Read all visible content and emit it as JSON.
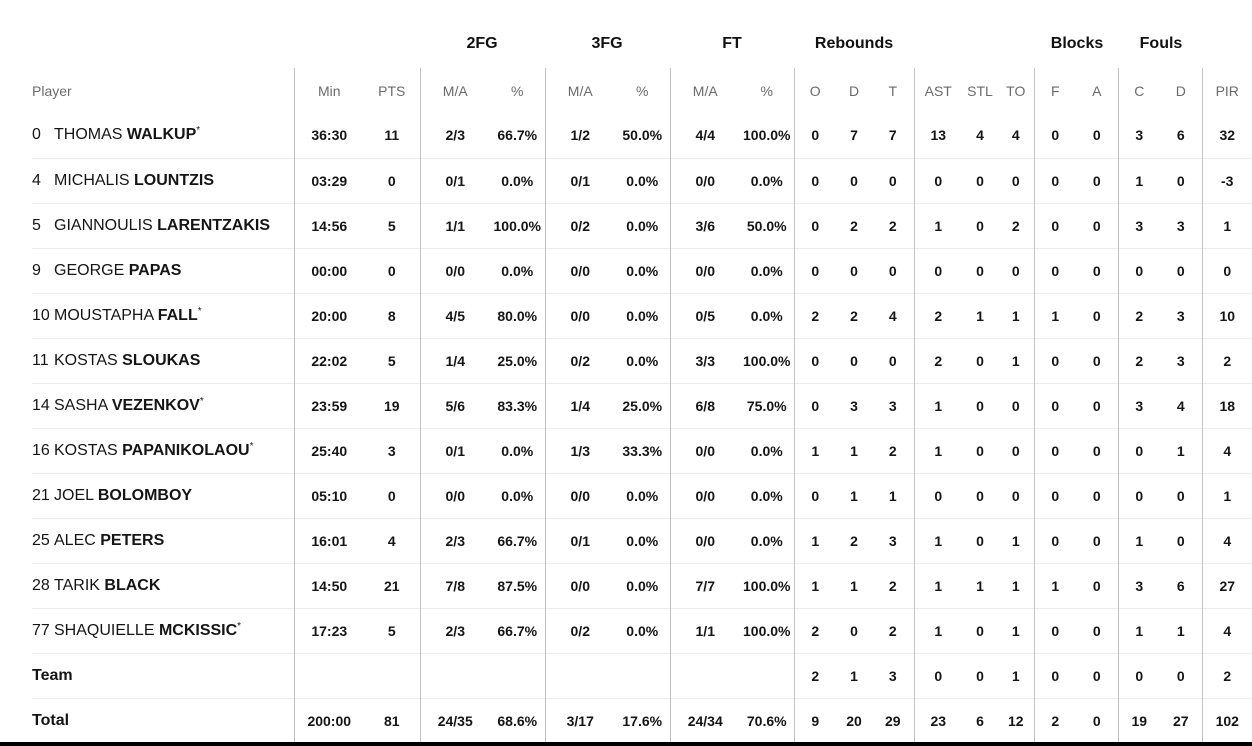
{
  "group_headers": {
    "fg2": "2FG",
    "fg3": "3FG",
    "ft": "FT",
    "rebounds": "Rebounds",
    "blocks": "Blocks",
    "fouls": "Fouls"
  },
  "columns": {
    "player": "Player",
    "min": "Min",
    "pts": "PTS",
    "fg2_ma": "M/A",
    "fg2_pct": "%",
    "fg3_ma": "M/A",
    "fg3_pct": "%",
    "ft_ma": "M/A",
    "ft_pct": "%",
    "reb_o": "O",
    "reb_d": "D",
    "reb_t": "T",
    "ast": "AST",
    "stl": "STL",
    "to": "TO",
    "blk_f": "F",
    "blk_a": "A",
    "foul_c": "C",
    "foul_d": "D",
    "pir": "PIR"
  },
  "players": [
    {
      "num": "0",
      "first": "THOMAS",
      "last": "WALKUP",
      "starter": "*",
      "min": "36:30",
      "pts": "11",
      "fg2_ma": "2/3",
      "fg2_pct": "66.7%",
      "fg3_ma": "1/2",
      "fg3_pct": "50.0%",
      "ft_ma": "4/4",
      "ft_pct": "100.0%",
      "reb_o": "0",
      "reb_d": "7",
      "reb_t": "7",
      "ast": "13",
      "stl": "4",
      "to": "4",
      "blk_f": "0",
      "blk_a": "0",
      "foul_c": "3",
      "foul_d": "6",
      "pir": "32"
    },
    {
      "num": "4",
      "first": "MICHALIS",
      "last": "LOUNTZIS",
      "starter": "",
      "min": "03:29",
      "pts": "0",
      "fg2_ma": "0/1",
      "fg2_pct": "0.0%",
      "fg3_ma": "0/1",
      "fg3_pct": "0.0%",
      "ft_ma": "0/0",
      "ft_pct": "0.0%",
      "reb_o": "0",
      "reb_d": "0",
      "reb_t": "0",
      "ast": "0",
      "stl": "0",
      "to": "0",
      "blk_f": "0",
      "blk_a": "0",
      "foul_c": "1",
      "foul_d": "0",
      "pir": "-3"
    },
    {
      "num": "5",
      "first": "GIANNOULIS",
      "last": "LARENTZAKIS",
      "starter": "",
      "min": "14:56",
      "pts": "5",
      "fg2_ma": "1/1",
      "fg2_pct": "100.0%",
      "fg3_ma": "0/2",
      "fg3_pct": "0.0%",
      "ft_ma": "3/6",
      "ft_pct": "50.0%",
      "reb_o": "0",
      "reb_d": "2",
      "reb_t": "2",
      "ast": "1",
      "stl": "0",
      "to": "2",
      "blk_f": "0",
      "blk_a": "0",
      "foul_c": "3",
      "foul_d": "3",
      "pir": "1"
    },
    {
      "num": "9",
      "first": "GEORGE",
      "last": "PAPAS",
      "starter": "",
      "min": "00:00",
      "pts": "0",
      "fg2_ma": "0/0",
      "fg2_pct": "0.0%",
      "fg3_ma": "0/0",
      "fg3_pct": "0.0%",
      "ft_ma": "0/0",
      "ft_pct": "0.0%",
      "reb_o": "0",
      "reb_d": "0",
      "reb_t": "0",
      "ast": "0",
      "stl": "0",
      "to": "0",
      "blk_f": "0",
      "blk_a": "0",
      "foul_c": "0",
      "foul_d": "0",
      "pir": "0"
    },
    {
      "num": "10",
      "first": "MOUSTAPHA",
      "last": "FALL",
      "starter": "*",
      "min": "20:00",
      "pts": "8",
      "fg2_ma": "4/5",
      "fg2_pct": "80.0%",
      "fg3_ma": "0/0",
      "fg3_pct": "0.0%",
      "ft_ma": "0/5",
      "ft_pct": "0.0%",
      "reb_o": "2",
      "reb_d": "2",
      "reb_t": "4",
      "ast": "2",
      "stl": "1",
      "to": "1",
      "blk_f": "1",
      "blk_a": "0",
      "foul_c": "2",
      "foul_d": "3",
      "pir": "10"
    },
    {
      "num": "11",
      "first": "KOSTAS",
      "last": "SLOUKAS",
      "starter": "",
      "min": "22:02",
      "pts": "5",
      "fg2_ma": "1/4",
      "fg2_pct": "25.0%",
      "fg3_ma": "0/2",
      "fg3_pct": "0.0%",
      "ft_ma": "3/3",
      "ft_pct": "100.0%",
      "reb_o": "0",
      "reb_d": "0",
      "reb_t": "0",
      "ast": "2",
      "stl": "0",
      "to": "1",
      "blk_f": "0",
      "blk_a": "0",
      "foul_c": "2",
      "foul_d": "3",
      "pir": "2"
    },
    {
      "num": "14",
      "first": "SASHA",
      "last": "VEZENKOV",
      "starter": "*",
      "min": "23:59",
      "pts": "19",
      "fg2_ma": "5/6",
      "fg2_pct": "83.3%",
      "fg3_ma": "1/4",
      "fg3_pct": "25.0%",
      "ft_ma": "6/8",
      "ft_pct": "75.0%",
      "reb_o": "0",
      "reb_d": "3",
      "reb_t": "3",
      "ast": "1",
      "stl": "0",
      "to": "0",
      "blk_f": "0",
      "blk_a": "0",
      "foul_c": "3",
      "foul_d": "4",
      "pir": "18"
    },
    {
      "num": "16",
      "first": "KOSTAS",
      "last": "PAPANIKOLAOU",
      "starter": "*",
      "min": "25:40",
      "pts": "3",
      "fg2_ma": "0/1",
      "fg2_pct": "0.0%",
      "fg3_ma": "1/3",
      "fg3_pct": "33.3%",
      "ft_ma": "0/0",
      "ft_pct": "0.0%",
      "reb_o": "1",
      "reb_d": "1",
      "reb_t": "2",
      "ast": "1",
      "stl": "0",
      "to": "0",
      "blk_f": "0",
      "blk_a": "0",
      "foul_c": "0",
      "foul_d": "1",
      "pir": "4"
    },
    {
      "num": "21",
      "first": "JOEL",
      "last": "BOLOMBOY",
      "starter": "",
      "min": "05:10",
      "pts": "0",
      "fg2_ma": "0/0",
      "fg2_pct": "0.0%",
      "fg3_ma": "0/0",
      "fg3_pct": "0.0%",
      "ft_ma": "0/0",
      "ft_pct": "0.0%",
      "reb_o": "0",
      "reb_d": "1",
      "reb_t": "1",
      "ast": "0",
      "stl": "0",
      "to": "0",
      "blk_f": "0",
      "blk_a": "0",
      "foul_c": "0",
      "foul_d": "0",
      "pir": "1"
    },
    {
      "num": "25",
      "first": "ALEC",
      "last": "PETERS",
      "starter": "",
      "min": "16:01",
      "pts": "4",
      "fg2_ma": "2/3",
      "fg2_pct": "66.7%",
      "fg3_ma": "0/1",
      "fg3_pct": "0.0%",
      "ft_ma": "0/0",
      "ft_pct": "0.0%",
      "reb_o": "1",
      "reb_d": "2",
      "reb_t": "3",
      "ast": "1",
      "stl": "0",
      "to": "1",
      "blk_f": "0",
      "blk_a": "0",
      "foul_c": "1",
      "foul_d": "0",
      "pir": "4"
    },
    {
      "num": "28",
      "first": "TARIK",
      "last": "BLACK",
      "starter": "",
      "min": "14:50",
      "pts": "21",
      "fg2_ma": "7/8",
      "fg2_pct": "87.5%",
      "fg3_ma": "0/0",
      "fg3_pct": "0.0%",
      "ft_ma": "7/7",
      "ft_pct": "100.0%",
      "reb_o": "1",
      "reb_d": "1",
      "reb_t": "2",
      "ast": "1",
      "stl": "1",
      "to": "1",
      "blk_f": "1",
      "blk_a": "0",
      "foul_c": "3",
      "foul_d": "6",
      "pir": "27"
    },
    {
      "num": "77",
      "first": "SHAQUIELLE",
      "last": "MCKISSIC",
      "starter": "*",
      "min": "17:23",
      "pts": "5",
      "fg2_ma": "2/3",
      "fg2_pct": "66.7%",
      "fg3_ma": "0/2",
      "fg3_pct": "0.0%",
      "ft_ma": "1/1",
      "ft_pct": "100.0%",
      "reb_o": "2",
      "reb_d": "0",
      "reb_t": "2",
      "ast": "1",
      "stl": "0",
      "to": "1",
      "blk_f": "0",
      "blk_a": "0",
      "foul_c": "1",
      "foul_d": "1",
      "pir": "4"
    }
  ],
  "team": {
    "label": "Team",
    "min": "",
    "pts": "",
    "fg2_ma": "",
    "fg2_pct": "",
    "fg3_ma": "",
    "fg3_pct": "",
    "ft_ma": "",
    "ft_pct": "",
    "reb_o": "2",
    "reb_d": "1",
    "reb_t": "3",
    "ast": "0",
    "stl": "0",
    "to": "1",
    "blk_f": "0",
    "blk_a": "0",
    "foul_c": "0",
    "foul_d": "0",
    "pir": "2"
  },
  "total": {
    "label": "Total",
    "min": "200:00",
    "pts": "81",
    "fg2_ma": "24/35",
    "fg2_pct": "68.6%",
    "fg3_ma": "3/17",
    "fg3_pct": "17.6%",
    "ft_ma": "24/34",
    "ft_pct": "70.6%",
    "reb_o": "9",
    "reb_d": "20",
    "reb_t": "29",
    "ast": "23",
    "stl": "6",
    "to": "12",
    "blk_f": "2",
    "blk_a": "0",
    "foul_c": "19",
    "foul_d": "27",
    "pir": "102"
  }
}
